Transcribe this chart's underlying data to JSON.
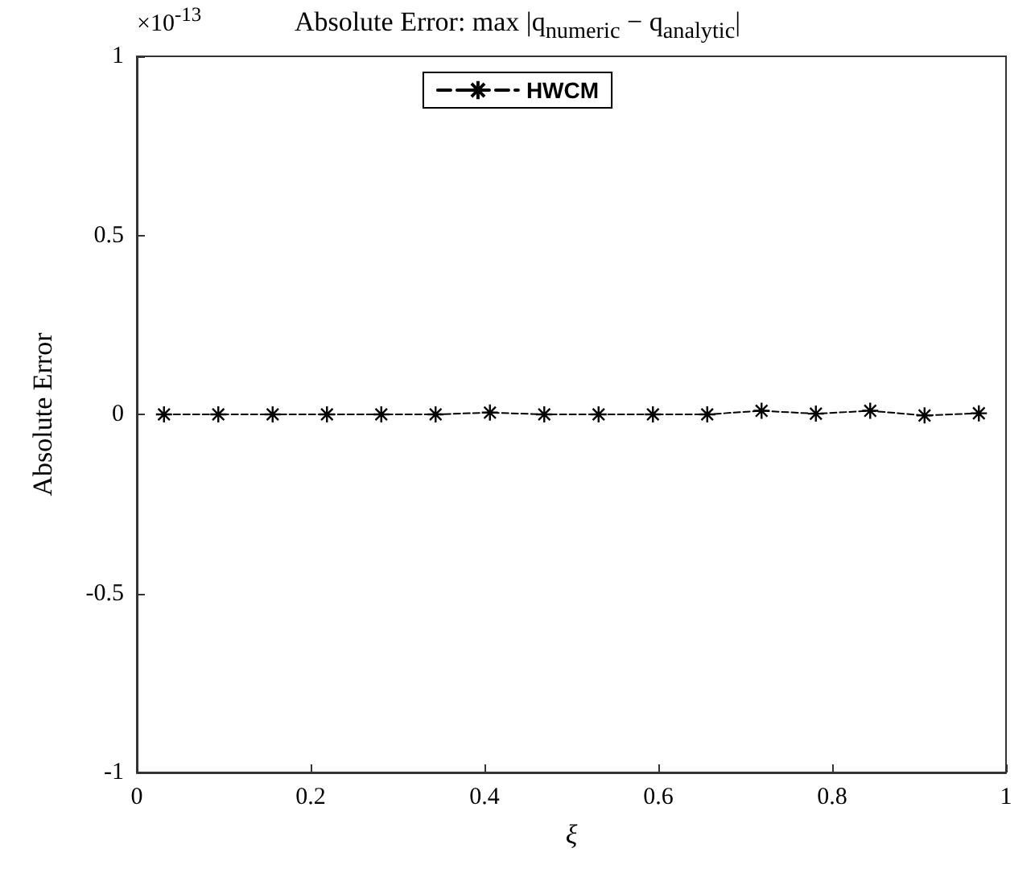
{
  "chart_data": {
    "type": "line",
    "title": "Absolute Error: max |q$_{numeric}$ − q$_{analytic}$|",
    "xlabel": "ξ",
    "ylabel": "Absolute Error",
    "annotations": [
      "×10$^{-13}$"
    ],
    "x": [
      0.03125,
      0.09375,
      0.15625,
      0.21875,
      0.28125,
      0.34375,
      0.40625,
      0.46875,
      0.53125,
      0.59375,
      0.65625,
      0.71875,
      0.78125,
      0.84375,
      0.90625,
      0.96875
    ],
    "series": [
      {
        "name": "HWCM",
        "color": "#000000",
        "values": [
          0,
          0,
          0,
          0,
          0,
          0,
          0.005,
          0,
          0,
          0,
          0,
          0.01,
          0.002,
          0.01,
          -0.003,
          0.003
        ]
      }
    ],
    "xlim": [
      0,
      1
    ],
    "xticks": [
      0,
      0.2,
      0.4,
      0.6,
      0.8,
      1
    ],
    "ylim": [
      -1,
      1
    ],
    "yticks": [
      -1,
      -0.5,
      0,
      0.5,
      1
    ],
    "grid": false,
    "legend": "top",
    "marker": "cross",
    "line_style": "dashed"
  }
}
